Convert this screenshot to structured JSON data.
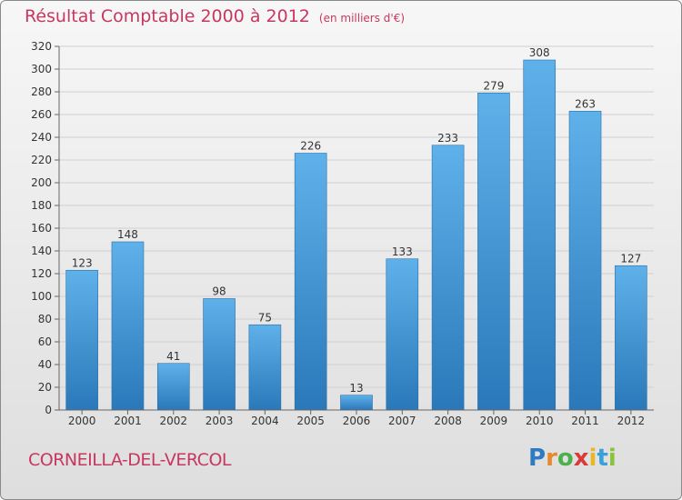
{
  "header": {
    "title": "Résultat Comptable 2000 à 2012",
    "subtitle": "(en milliers d'€)"
  },
  "footer": {
    "city": "CORNEILLA-DEL-VERCOL",
    "logo": {
      "letters": [
        "P",
        "r",
        "o",
        "x",
        "i",
        "t",
        "i"
      ],
      "colors": [
        "#2e7bc4",
        "#e8892b",
        "#4bb24b",
        "#d93a3a",
        "#e8b82b",
        "#3aa0d9",
        "#8bc43a"
      ]
    }
  },
  "colors": {
    "accent": "#c7375f",
    "bar_top": "#5fb1ea",
    "bar_bottom": "#2a78b9"
  },
  "chart_data": {
    "type": "bar",
    "categories": [
      "2000",
      "2001",
      "2002",
      "2003",
      "2004",
      "2005",
      "2006",
      "2007",
      "2008",
      "2009",
      "2010",
      "2011",
      "2012"
    ],
    "values": [
      123,
      148,
      41,
      98,
      75,
      226,
      13,
      133,
      233,
      279,
      308,
      263,
      127
    ],
    "title": "Résultat Comptable 2000 à 2012",
    "subtitle": "(en milliers d'€)",
    "ylim": [
      0,
      320
    ],
    "yticks": [
      0,
      20,
      40,
      60,
      80,
      100,
      120,
      140,
      160,
      180,
      200,
      220,
      240,
      260,
      280,
      300,
      320
    ],
    "grid": true,
    "data_labels": true
  }
}
